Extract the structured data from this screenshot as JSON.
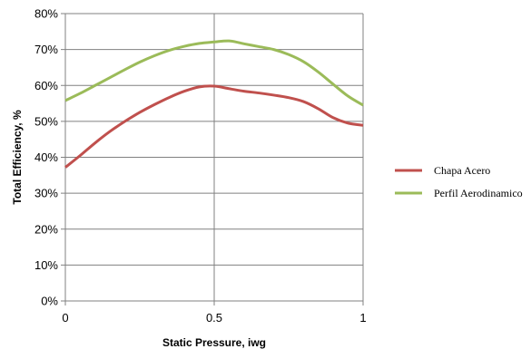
{
  "chart_data": {
    "type": "line",
    "xlabel": "Static Pressure, iwg",
    "ylabel": "Total Efficiency, %",
    "xlim": [
      0,
      1
    ],
    "ylim": [
      0,
      80
    ],
    "x_ticks": [
      "0",
      "0.5",
      "1"
    ],
    "y_ticks": [
      "0%",
      "10%",
      "20%",
      "30%",
      "40%",
      "50%",
      "60%",
      "70%",
      "80%"
    ],
    "grid": true,
    "legend_position": "right",
    "series": [
      {
        "name": "Chapa Acero",
        "color": "#c0504d",
        "x": [
          0,
          0.05,
          0.1,
          0.15,
          0.2,
          0.25,
          0.3,
          0.35,
          0.4,
          0.45,
          0.5,
          0.55,
          0.6,
          0.65,
          0.7,
          0.75,
          0.8,
          0.85,
          0.9,
          0.95,
          1.0
        ],
        "y": [
          37.2,
          40.5,
          44.0,
          47.2,
          50.0,
          52.5,
          54.7,
          56.7,
          58.4,
          59.6,
          59.8,
          59.1,
          58.4,
          57.9,
          57.3,
          56.6,
          55.5,
          53.5,
          51.0,
          49.5,
          48.9
        ]
      },
      {
        "name": "Perfil Aerodinamico",
        "color": "#9bbb59",
        "x": [
          0,
          0.05,
          0.1,
          0.15,
          0.2,
          0.25,
          0.3,
          0.35,
          0.4,
          0.45,
          0.5,
          0.55,
          0.6,
          0.65,
          0.7,
          0.75,
          0.8,
          0.85,
          0.9,
          0.95,
          1.0
        ],
        "y": [
          55.8,
          57.8,
          60.0,
          62.2,
          64.4,
          66.5,
          68.3,
          69.8,
          70.9,
          71.7,
          72.1,
          72.4,
          71.6,
          70.8,
          70.0,
          68.6,
          66.6,
          63.7,
          60.3,
          57.0,
          54.5
        ]
      }
    ]
  }
}
